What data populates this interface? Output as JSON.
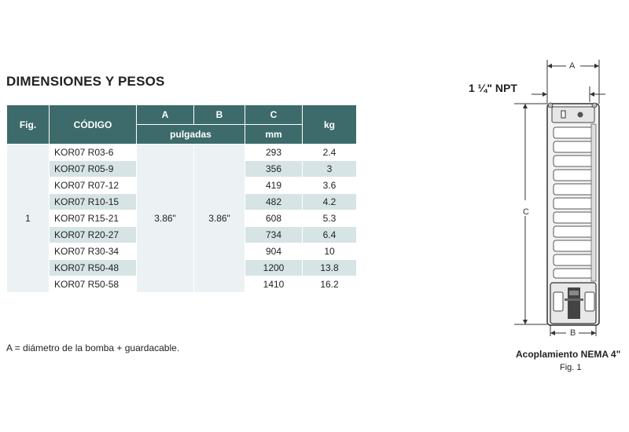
{
  "title": "DIMENSIONES Y PESOS",
  "table": {
    "headers": {
      "fig": "Fig.",
      "codigo": "CÓDIGO",
      "a": "A",
      "b": "B",
      "c": "C",
      "kg": "kg",
      "pulgadas": "pulgadas",
      "mm": "mm"
    },
    "fig_value": "1",
    "a_value": "3.86\"",
    "b_value": "3.86\"",
    "rows": [
      {
        "code": "KOR07 R03-6",
        "c": "293",
        "kg": "2.4"
      },
      {
        "code": "KOR07 R05-9",
        "c": "356",
        "kg": "3"
      },
      {
        "code": "KOR07 R07-12",
        "c": "419",
        "kg": "3.6"
      },
      {
        "code": "KOR07 R10-15",
        "c": "482",
        "kg": "4.2"
      },
      {
        "code": "KOR07 R15-21",
        "c": "608",
        "kg": "5.3"
      },
      {
        "code": "KOR07 R20-27",
        "c": "734",
        "kg": "6.4"
      },
      {
        "code": "KOR07 R30-34",
        "c": "904",
        "kg": "10"
      },
      {
        "code": "KOR07 R50-48",
        "c": "1200",
        "kg": "13.8"
      },
      {
        "code": "KOR07 R50-58",
        "c": "1410",
        "kg": "16.2"
      }
    ]
  },
  "note": "A = diámetro de la bomba + guardacable.",
  "drawing": {
    "npt": "1 ¼\" NPT",
    "dim_a": "A",
    "dim_b": "B",
    "dim_c": "C",
    "coupling": "Acoplamiento NEMA 4\"",
    "fig": "Fig. 1"
  }
}
